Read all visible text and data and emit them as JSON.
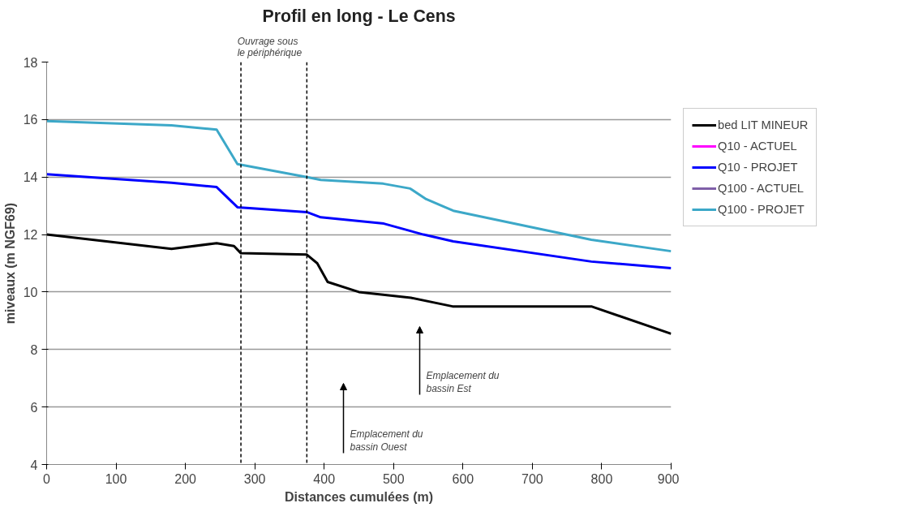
{
  "chart_data": {
    "type": "line",
    "title": "Profil en long - Le Cens",
    "xlabel": "Distances cumulées (m)",
    "ylabel": "miveaux (m NGF69)",
    "xlim": [
      0,
      900
    ],
    "ylim": [
      4,
      18
    ],
    "xticks": [
      0,
      100,
      200,
      300,
      400,
      500,
      600,
      700,
      800,
      900
    ],
    "yticks": [
      4,
      6,
      8,
      10,
      12,
      14,
      16,
      18
    ],
    "grid": "y",
    "legend": "right",
    "line_style": "solid",
    "marker": "none",
    "series": [
      {
        "name": "bed LIT MINEUR",
        "color": "#000000",
        "x": [
          0,
          180,
          245,
          270,
          280,
          375,
          390,
          405,
          450,
          525,
          585,
          785,
          900
        ],
        "values": [
          12,
          11.5,
          11.7,
          11.6,
          11.35,
          11.3,
          11.0,
          10.35,
          10.0,
          9.8,
          9.5,
          9.5,
          8.55
        ]
      },
      {
        "name": "Q10 - ACTUEL",
        "color": "#ff00ff"
      },
      {
        "name": "Q10 - PROJET",
        "color": "#0000ff",
        "x": [
          0,
          180,
          245,
          275,
          375,
          395,
          486,
          543,
          586,
          785,
          900
        ],
        "values": [
          14.1,
          13.8,
          13.65,
          12.95,
          12.78,
          12.6,
          12.38,
          12.0,
          11.76,
          11.06,
          10.83
        ]
      },
      {
        "name": "Q100 - ACTUEL",
        "color": "#7f5fa8"
      },
      {
        "name": "Q100 - PROJET",
        "color": "#3ca8c8",
        "x": [
          0,
          180,
          245,
          275,
          375,
          395,
          485,
          524,
          547,
          586,
          785,
          900
        ],
        "values": [
          15.95,
          15.8,
          15.65,
          14.45,
          14.0,
          13.9,
          13.77,
          13.6,
          13.23,
          12.83,
          11.82,
          11.42
        ]
      }
    ],
    "ref_lines": [
      {
        "axis": "x",
        "value": 280,
        "color": "#000000",
        "line_style": "dashed"
      },
      {
        "axis": "x",
        "value": 375,
        "color": "#000000",
        "line_style": "dashed"
      }
    ],
    "annotations": [
      "Ouvrage sous\nle périphérique",
      "Emplacement du\nbassin Est",
      "Emplacement du\nbassin Ouest"
    ]
  }
}
